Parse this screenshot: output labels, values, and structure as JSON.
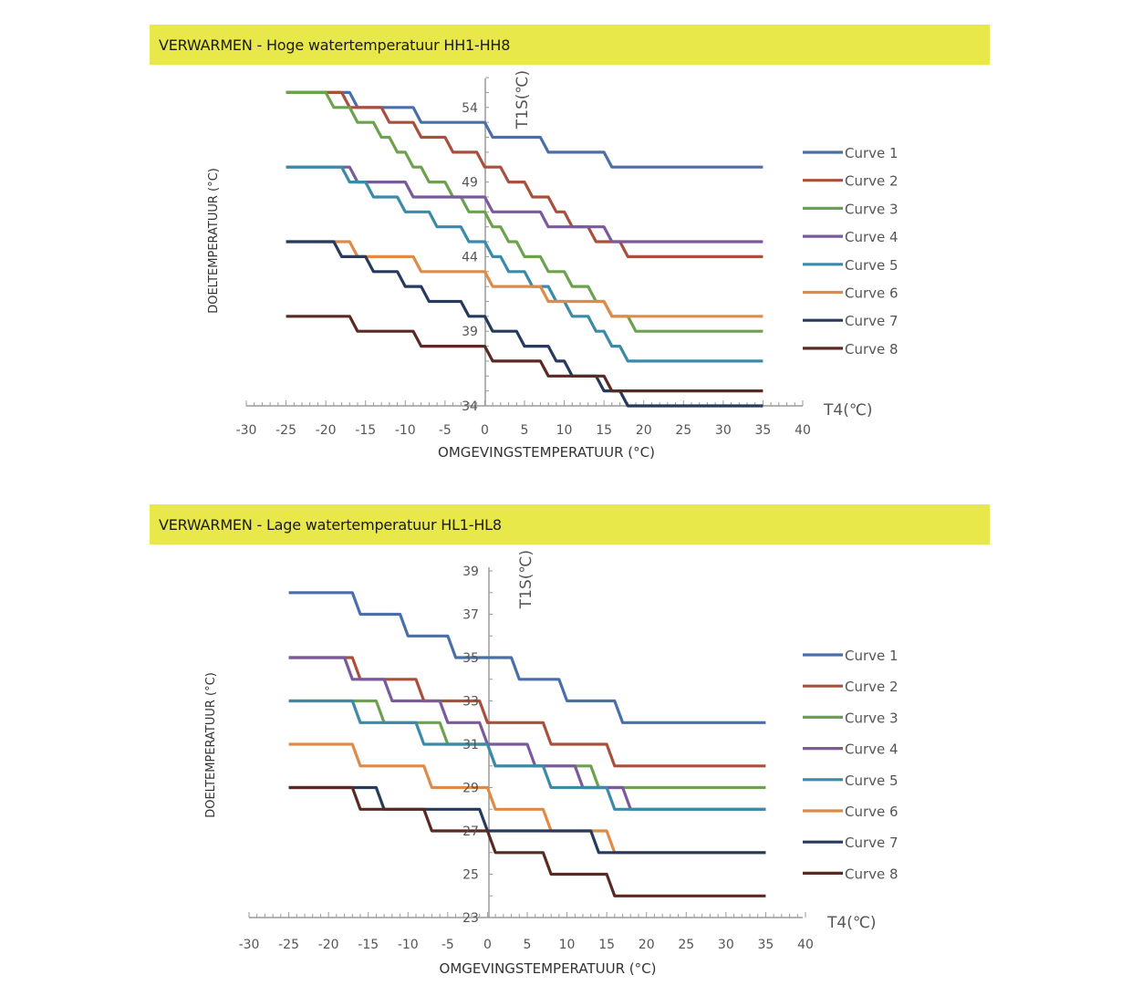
{
  "chart_data": [
    {
      "type": "line",
      "title": "VERWARMEN - Hoge watertemperatuur HH1-HH8",
      "xlabel": "OMGEVINGSTEMPERATUUR (°C)",
      "ylabel": "DOELTEMPERATUUR (°C)",
      "x_axis_name": "T4(℃)",
      "y_axis_name": "T1S(℃)",
      "xlim": [
        -30,
        40
      ],
      "ylim": [
        34,
        56
      ],
      "x_ticks": [
        -30,
        -25,
        -20,
        -15,
        -10,
        -5,
        0,
        5,
        10,
        15,
        20,
        25,
        30,
        35,
        40
      ],
      "y_ticks": [
        34,
        39,
        44,
        49,
        54
      ],
      "legend": "right",
      "series": [
        {
          "name": "Curve 1",
          "color": "#4a6fa8",
          "x": [
            -25,
            -17,
            -16,
            -9,
            -8,
            0,
            1,
            7,
            8,
            15,
            16,
            35
          ],
          "y": [
            55,
            55,
            54,
            54,
            53,
            53,
            52,
            52,
            51,
            51,
            50,
            50
          ]
        },
        {
          "name": "Curve 2",
          "color": "#a8503c",
          "x": [
            -25,
            -18,
            -17,
            -13,
            -12,
            -9,
            -8,
            -5,
            -4,
            -1,
            0,
            2,
            3,
            5,
            6,
            8,
            9,
            10,
            11,
            13,
            14,
            17,
            18,
            35
          ],
          "y": [
            55,
            55,
            54,
            54,
            53,
            53,
            52,
            52,
            51,
            51,
            50,
            50,
            49,
            49,
            48,
            48,
            47,
            47,
            46,
            46,
            45,
            45,
            44,
            44
          ]
        },
        {
          "name": "Curve 3",
          "color": "#6ca24e",
          "x": [
            -25,
            -20,
            -19,
            -17,
            -16,
            -14,
            -13,
            -12,
            -11,
            -10,
            -9,
            -8,
            -7,
            -5,
            -4,
            -3,
            -2,
            0,
            1,
            2,
            3,
            4,
            5,
            7,
            8,
            10,
            11,
            13,
            14,
            15,
            16,
            18,
            19,
            35
          ],
          "y": [
            55,
            55,
            54,
            54,
            53,
            53,
            52,
            52,
            51,
            51,
            50,
            50,
            49,
            49,
            48,
            48,
            47,
            47,
            46,
            46,
            45,
            45,
            44,
            44,
            43,
            43,
            42,
            42,
            41,
            41,
            40,
            40,
            39,
            39
          ]
        },
        {
          "name": "Curve 4",
          "color": "#7a5a9a",
          "x": [
            -25,
            -17,
            -16,
            -10,
            -9,
            0,
            1,
            7,
            8,
            15,
            16,
            35
          ],
          "y": [
            50,
            50,
            49,
            49,
            48,
            48,
            47,
            47,
            46,
            46,
            45,
            45
          ]
        },
        {
          "name": "Curve 5",
          "color": "#3a8aa8",
          "x": [
            -25,
            -18,
            -17,
            -15,
            -14,
            -11,
            -10,
            -7,
            -6,
            -3,
            -2,
            0,
            1,
            2,
            3,
            5,
            6,
            8,
            9,
            10,
            11,
            13,
            14,
            15,
            16,
            17,
            18,
            35
          ],
          "y": [
            50,
            50,
            49,
            49,
            48,
            48,
            47,
            47,
            46,
            46,
            45,
            45,
            44,
            44,
            43,
            43,
            42,
            42,
            41,
            41,
            40,
            40,
            39,
            39,
            38,
            38,
            37,
            37
          ]
        },
        {
          "name": "Curve 6",
          "color": "#e08a48",
          "x": [
            -25,
            -17,
            -16,
            -9,
            -8,
            0,
            1,
            7,
            8,
            15,
            16,
            35
          ],
          "y": [
            45,
            45,
            44,
            44,
            43,
            43,
            42,
            42,
            41,
            41,
            40,
            40
          ]
        },
        {
          "name": "Curve 7",
          "color": "#263a5e",
          "x": [
            -25,
            -19,
            -18,
            -15,
            -14,
            -11,
            -10,
            -8,
            -7,
            -3,
            -2,
            0,
            1,
            4,
            5,
            8,
            9,
            10,
            11,
            14,
            15,
            17,
            18,
            35
          ],
          "y": [
            45,
            45,
            44,
            44,
            43,
            43,
            42,
            42,
            41,
            41,
            40,
            40,
            39,
            39,
            38,
            38,
            37,
            37,
            36,
            36,
            35,
            35,
            34,
            34
          ]
        },
        {
          "name": "Curve 8",
          "color": "#5a2a22",
          "x": [
            -25,
            -17,
            -16,
            -9,
            -8,
            0,
            1,
            7,
            8,
            15,
            16,
            35
          ],
          "y": [
            40,
            40,
            39,
            39,
            38,
            38,
            37,
            37,
            36,
            36,
            35,
            35
          ]
        }
      ]
    },
    {
      "type": "line",
      "title": "VERWARMEN - Lage watertemperatuur HL1-HL8",
      "xlabel": "OMGEVINGSTEMPERATUUR (°C)",
      "ylabel": "DOELTEMPERATUUR (°C)",
      "x_axis_name": "T4(℃)",
      "y_axis_name": "T1S(℃)",
      "xlim": [
        -30,
        40
      ],
      "ylim": [
        23,
        39
      ],
      "x_ticks": [
        -30,
        -25,
        -20,
        -15,
        -10,
        -5,
        0,
        5,
        10,
        15,
        20,
        25,
        30,
        35,
        40
      ],
      "y_ticks": [
        23,
        25,
        27,
        29,
        31,
        33,
        35,
        37,
        39
      ],
      "legend": "right",
      "series": [
        {
          "name": "Curve 1",
          "color": "#4a6fa8",
          "x": [
            -25,
            -17,
            -16,
            -11,
            -10,
            -5,
            -4,
            3,
            4,
            9,
            10,
            16,
            17,
            35
          ],
          "y": [
            38,
            38,
            37,
            37,
            36,
            36,
            35,
            35,
            34,
            34,
            33,
            33,
            32,
            32
          ]
        },
        {
          "name": "Curve 2",
          "color": "#a8503c",
          "x": [
            -25,
            -17,
            -16,
            -9,
            -8,
            -1,
            0,
            7,
            8,
            15,
            16,
            35
          ],
          "y": [
            35,
            35,
            34,
            34,
            33,
            33,
            32,
            32,
            31,
            31,
            30,
            30
          ]
        },
        {
          "name": "Curve 3",
          "color": "#6ca24e",
          "x": [
            -25,
            -14,
            -13,
            -6,
            -5,
            0,
            1,
            13,
            14,
            35
          ],
          "y": [
            33,
            33,
            32,
            32,
            31,
            31,
            30,
            30,
            29,
            29
          ]
        },
        {
          "name": "Curve 4",
          "color": "#7a5a9a",
          "x": [
            -25,
            -18,
            -17,
            -13,
            -12,
            -6,
            -5,
            -1,
            0,
            5,
            6,
            11,
            12,
            17,
            18,
            35
          ],
          "y": [
            35,
            35,
            34,
            34,
            33,
            33,
            32,
            32,
            31,
            31,
            30,
            30,
            29,
            29,
            28,
            28
          ]
        },
        {
          "name": "Curve 5",
          "color": "#3a8aa8",
          "x": [
            -25,
            -17,
            -16,
            -9,
            -8,
            0,
            1,
            7,
            8,
            15,
            16,
            35
          ],
          "y": [
            33,
            33,
            32,
            32,
            31,
            31,
            30,
            30,
            29,
            29,
            28,
            28
          ]
        },
        {
          "name": "Curve 6",
          "color": "#e08a48",
          "x": [
            -25,
            -17,
            -16,
            -8,
            -7,
            0,
            1,
            7,
            8,
            15,
            16,
            35
          ],
          "y": [
            31,
            31,
            30,
            30,
            29,
            29,
            28,
            28,
            27,
            27,
            26,
            26
          ]
        },
        {
          "name": "Curve 7",
          "color": "#263a5e",
          "x": [
            -25,
            -14,
            -13,
            -1,
            0,
            13,
            14,
            35
          ],
          "y": [
            29,
            29,
            28,
            28,
            27,
            27,
            26,
            26
          ]
        },
        {
          "name": "Curve 8",
          "color": "#5a2a22",
          "x": [
            -25,
            -17,
            -16,
            -8,
            -7,
            0,
            1,
            7,
            8,
            15,
            16,
            35
          ],
          "y": [
            29,
            29,
            28,
            28,
            27,
            27,
            26,
            26,
            25,
            25,
            24,
            24
          ]
        }
      ]
    }
  ]
}
